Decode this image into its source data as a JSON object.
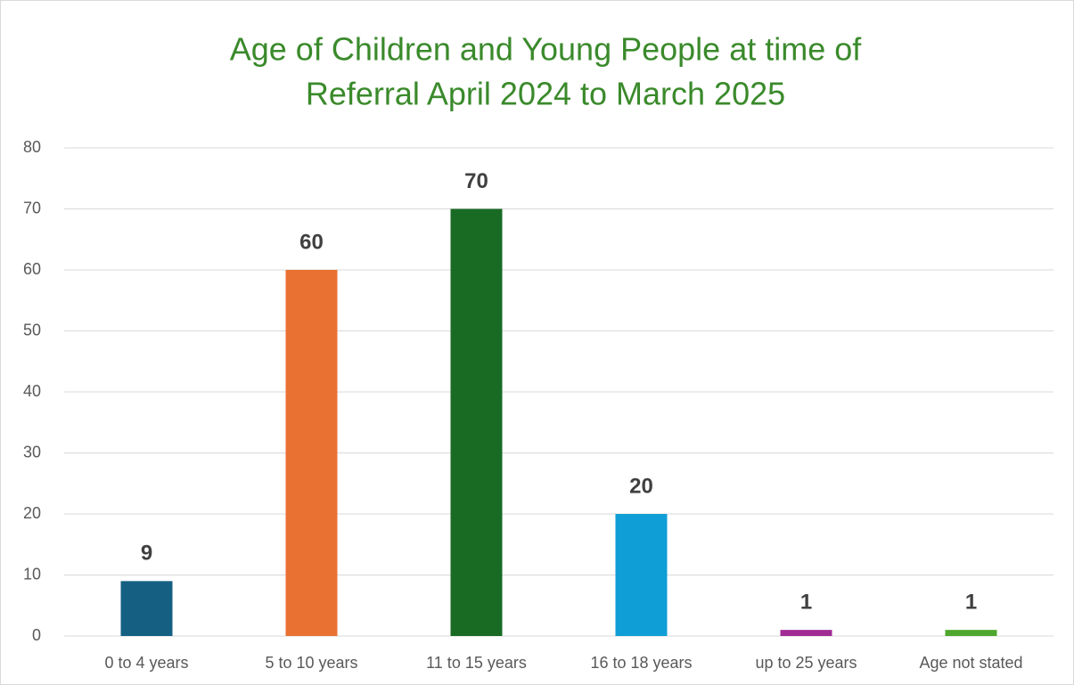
{
  "chart_data": {
    "type": "bar",
    "title": [
      "Age of Children and Young People at time of",
      "Referral April 2024 to March 2025"
    ],
    "categories": [
      "0 to 4 years",
      "5 to 10 years",
      "11 to 15 years",
      "16 to 18 years",
      "up to 25 years",
      "Age not stated"
    ],
    "values": [
      9,
      60,
      70,
      20,
      1,
      1
    ],
    "colors": [
      "#156082",
      "#e97132",
      "#196b24",
      "#0f9ed5",
      "#a02b93",
      "#4ea72e"
    ],
    "ylim": [
      0,
      80
    ],
    "yticks": [
      0,
      10,
      20,
      30,
      40,
      50,
      60,
      70,
      80
    ],
    "grid": true
  }
}
